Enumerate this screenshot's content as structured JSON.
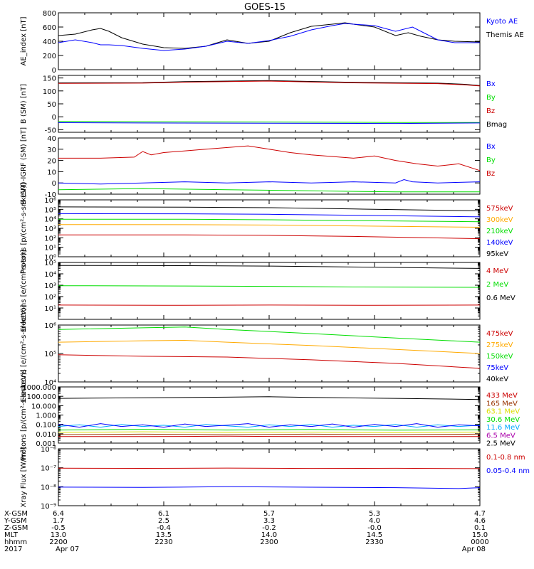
{
  "title": "GOES-15",
  "colors": {
    "black": "#000000",
    "blue": "#0000ff",
    "green": "#00dd00",
    "red": "#cc0000",
    "orange": "#ffaa00",
    "cyan": "#00aaff",
    "purple": "#aa00aa",
    "brown": "#993300",
    "yellow": "#dddd00"
  },
  "chart_data": [
    {
      "type": "line",
      "ylabel": "AE_index [nT]",
      "scale": "linear",
      "ylim": [
        0,
        800
      ],
      "yticks": [
        0,
        200,
        400,
        600,
        800
      ],
      "ytick_labels": [
        "0",
        "200",
        "400",
        "600",
        "800"
      ],
      "legend": [
        {
          "label": "Kyoto AE",
          "color": "blue"
        },
        {
          "label": "Themis AE",
          "color": "black"
        }
      ],
      "series": [
        {
          "name": "Themis AE",
          "color": "black",
          "x": [
            0,
            0.04,
            0.08,
            0.1,
            0.12,
            0.15,
            0.2,
            0.25,
            0.3,
            0.35,
            0.4,
            0.45,
            0.5,
            0.55,
            0.6,
            0.65,
            0.68,
            0.7,
            0.75,
            0.8,
            0.83,
            0.86,
            0.9,
            0.94,
            1
          ],
          "y": [
            480,
            500,
            560,
            580,
            540,
            450,
            360,
            310,
            300,
            330,
            420,
            370,
            400,
            520,
            610,
            640,
            660,
            640,
            600,
            480,
            520,
            470,
            420,
            400,
            390
          ]
        },
        {
          "name": "Kyoto AE",
          "color": "blue",
          "x": [
            0,
            0.04,
            0.08,
            0.1,
            0.12,
            0.15,
            0.2,
            0.25,
            0.3,
            0.35,
            0.4,
            0.45,
            0.5,
            0.55,
            0.6,
            0.65,
            0.68,
            0.7,
            0.75,
            0.8,
            0.84,
            0.87,
            0.9,
            0.94,
            1
          ],
          "y": [
            380,
            420,
            380,
            350,
            350,
            340,
            300,
            270,
            290,
            330,
            400,
            370,
            410,
            470,
            560,
            620,
            650,
            640,
            620,
            540,
            600,
            510,
            420,
            380,
            380
          ]
        }
      ]
    },
    {
      "type": "line",
      "ylabel": "B (SM) [nT]",
      "scale": "linear",
      "ylim": [
        -60,
        160
      ],
      "yticks": [
        -50,
        0,
        50,
        100,
        150
      ],
      "ytick_labels": [
        "-50",
        "0",
        "50",
        "100",
        "150"
      ],
      "legend": [
        {
          "label": "Bx",
          "color": "blue"
        },
        {
          "label": "By",
          "color": "green"
        },
        {
          "label": "Bz",
          "color": "red"
        },
        {
          "label": "Bmag",
          "color": "black"
        }
      ],
      "series": [
        {
          "name": "Bmag",
          "color": "black",
          "x": [
            0,
            0.2,
            0.3,
            0.5,
            0.7,
            0.9,
            0.96,
            1
          ],
          "y": [
            131,
            132,
            136,
            140,
            133,
            130,
            126,
            121
          ]
        },
        {
          "name": "Bz",
          "color": "red",
          "x": [
            0,
            0.2,
            0.3,
            0.5,
            0.7,
            0.9,
            0.96,
            1
          ],
          "y": [
            129,
            130,
            134,
            138,
            131,
            128,
            124,
            119
          ]
        },
        {
          "name": "By",
          "color": "green",
          "x": [
            0,
            0.2,
            0.5,
            0.8,
            1
          ],
          "y": [
            -18,
            -19,
            -20,
            -22,
            -22
          ]
        },
        {
          "name": "Bx",
          "color": "blue",
          "x": [
            0,
            0.2,
            0.5,
            0.8,
            1
          ],
          "y": [
            -23,
            -24,
            -25,
            -26,
            -24
          ]
        }
      ]
    },
    {
      "type": "line",
      "ylabel": "B (SM)-IGRF (SM) [nT]",
      "scale": "linear",
      "ylim": [
        -10,
        40
      ],
      "yticks": [
        -10,
        0,
        10,
        20,
        30,
        40
      ],
      "ytick_labels": [
        "-10",
        "0",
        "10",
        "20",
        "30",
        "40"
      ],
      "legend": [
        {
          "label": "Bx",
          "color": "blue"
        },
        {
          "label": "By",
          "color": "green"
        },
        {
          "label": "Bz",
          "color": "red"
        }
      ],
      "series": [
        {
          "name": "Bz",
          "color": "red",
          "x": [
            0,
            0.1,
            0.18,
            0.2,
            0.22,
            0.25,
            0.35,
            0.45,
            0.5,
            0.55,
            0.6,
            0.7,
            0.75,
            0.8,
            0.85,
            0.9,
            0.95,
            1
          ],
          "y": [
            22,
            22,
            23,
            28,
            25,
            27,
            30,
            33,
            30,
            27,
            25,
            22,
            24,
            20,
            17,
            15,
            17,
            11
          ]
        },
        {
          "name": "Bx",
          "color": "blue",
          "x": [
            0,
            0.1,
            0.2,
            0.3,
            0.4,
            0.5,
            0.6,
            0.7,
            0.8,
            0.82,
            0.84,
            0.9,
            1
          ],
          "y": [
            0,
            -1,
            0,
            1,
            0,
            1,
            0,
            1,
            0,
            3,
            1,
            0,
            1
          ]
        },
        {
          "name": "By",
          "color": "green",
          "x": [
            0,
            0.2,
            0.4,
            0.6,
            0.8,
            1
          ],
          "y": [
            -6,
            -5,
            -6,
            -7,
            -8,
            -8
          ]
        }
      ]
    },
    {
      "type": "line",
      "ylabel": "Protons [p/(cm²-s-sr-keV)]",
      "scale": "log",
      "ylim": [
        1,
        1000000
      ],
      "yticks": [
        1,
        10,
        100,
        1000,
        10000,
        100000,
        1000000
      ],
      "ytick_labels": [
        "10⁰",
        "10¹",
        "10²",
        "10³",
        "10⁴",
        "10⁵",
        "10⁶"
      ],
      "legend": [
        {
          "label": "575keV",
          "color": "red"
        },
        {
          "label": "300keV",
          "color": "orange"
        },
        {
          "label": "210keV",
          "color": "green"
        },
        {
          "label": "140keV",
          "color": "blue"
        },
        {
          "label": "95keV",
          "color": "black"
        }
      ],
      "series": [
        {
          "name": "95keV",
          "color": "black",
          "x": [
            0,
            0.3,
            0.5,
            0.7,
            1
          ],
          "y": [
            180000,
            170000,
            150000,
            110000,
            70000
          ]
        },
        {
          "name": "140keV",
          "color": "blue",
          "x": [
            0,
            0.3,
            0.5,
            0.7,
            1
          ],
          "y": [
            35000,
            34000,
            30000,
            24000,
            16000
          ]
        },
        {
          "name": "210keV",
          "color": "green",
          "x": [
            0,
            0.3,
            0.5,
            0.7,
            1
          ],
          "y": [
            9000,
            9000,
            8000,
            6500,
            5000
          ]
        },
        {
          "name": "300keV",
          "color": "orange",
          "x": [
            0,
            0.3,
            0.5,
            0.7,
            1
          ],
          "y": [
            2500,
            2400,
            2200,
            1800,
            1300
          ]
        },
        {
          "name": "575keV",
          "color": "red",
          "x": [
            0,
            0.3,
            0.5,
            0.7,
            1
          ],
          "y": [
            200,
            200,
            180,
            140,
            80
          ]
        }
      ]
    },
    {
      "type": "line",
      "ylabel": "Electrons [e/(cm²-s-sr)]",
      "scale": "log",
      "ylim": [
        1,
        100000
      ],
      "yticks": [
        1,
        10,
        100,
        1000,
        10000,
        100000
      ],
      "ytick_labels": [
        "",
        "10¹",
        "10²",
        "10³",
        "10⁴",
        "10⁵"
      ],
      "legend": [
        {
          "label": "4 MeV",
          "color": "red"
        },
        {
          "label": "2 MeV",
          "color": "green"
        },
        {
          "label": "0.6 MeV",
          "color": "black"
        }
      ],
      "series": [
        {
          "name": "0.6 MeV",
          "color": "black",
          "x": [
            0,
            0.3,
            0.5,
            0.7,
            1
          ],
          "y": [
            55000,
            52000,
            48000,
            40000,
            30000
          ]
        },
        {
          "name": "2 MeV",
          "color": "green",
          "x": [
            0,
            0.3,
            0.5,
            0.7,
            1
          ],
          "y": [
            900,
            850,
            800,
            700,
            650
          ]
        },
        {
          "name": "4 MeV",
          "color": "red",
          "x": [
            0,
            0.25,
            0.5,
            0.75,
            1
          ],
          "y": [
            18,
            17,
            18,
            17,
            18
          ]
        }
      ]
    },
    {
      "type": "line",
      "ylabel": "Electrons [e/(cm²-s-sr-keV)]",
      "scale": "log",
      "ylim": [
        10000,
        1000000
      ],
      "yticks": [
        10000,
        100000,
        1000000
      ],
      "ytick_labels": [
        "10⁴",
        "10⁵",
        "10⁶"
      ],
      "legend": [
        {
          "label": "475keV",
          "color": "red"
        },
        {
          "label": "275keV",
          "color": "orange"
        },
        {
          "label": "150keV",
          "color": "green"
        },
        {
          "label": "75keV",
          "color": "blue"
        },
        {
          "label": "40keV",
          "color": "black"
        }
      ],
      "series": [
        {
          "name": "150keV",
          "color": "green",
          "x": [
            0,
            0.2,
            0.3,
            0.4,
            0.6,
            0.8,
            1
          ],
          "y": [
            700000,
            800000,
            850000,
            700000,
            500000,
            350000,
            250000
          ]
        },
        {
          "name": "275keV",
          "color": "orange",
          "x": [
            0,
            0.2,
            0.3,
            0.4,
            0.6,
            0.8,
            1
          ],
          "y": [
            250000,
            280000,
            290000,
            250000,
            190000,
            140000,
            100000
          ]
        },
        {
          "name": "475keV",
          "color": "red",
          "x": [
            0,
            0.2,
            0.4,
            0.6,
            0.8,
            1
          ],
          "y": [
            90000,
            80000,
            75000,
            60000,
            45000,
            30000
          ]
        }
      ]
    },
    {
      "type": "line",
      "ylabel": "Protons [p/(cm²-s-sr-keV)]",
      "scale": "log",
      "ylim": [
        0.001,
        1000
      ],
      "yticks": [
        0.001,
        0.01,
        0.1,
        1,
        10,
        100,
        1000
      ],
      "ytick_labels": [
        "0.001",
        "0.010",
        "0.100",
        "1.000",
        "10.000",
        "100.000",
        "1000.000"
      ],
      "legend": [
        {
          "label": "433 MeV",
          "color": "red"
        },
        {
          "label": "165 MeV",
          "color": "brown"
        },
        {
          "label": "63.1 MeV",
          "color": "yellow"
        },
        {
          "label": "30.6 MeV",
          "color": "green"
        },
        {
          "label": "11.6 MeV",
          "color": "cyan"
        },
        {
          "label": "6.5 MeV",
          "color": "purple"
        },
        {
          "label": "2.5 MeV",
          "color": "black"
        }
      ],
      "series": [
        {
          "name": "2.5 MeV",
          "color": "black",
          "x": [
            0,
            0.2,
            0.4,
            0.5,
            0.6,
            0.8,
            1
          ],
          "y": [
            60,
            70,
            80,
            90,
            75,
            60,
            45
          ]
        },
        {
          "name": "11.6 MeV",
          "color": "cyan",
          "x": [
            0,
            0.05,
            0.1,
            0.15,
            0.2,
            0.25,
            0.3,
            0.35,
            0.4,
            0.45,
            0.5,
            0.55,
            0.6,
            0.65,
            0.7,
            0.75,
            0.8,
            0.85,
            0.9,
            0.95,
            1
          ],
          "y": [
            0.06,
            0.09,
            0.05,
            0.1,
            0.06,
            0.08,
            0.05,
            0.1,
            0.07,
            0.05,
            0.09,
            0.06,
            0.1,
            0.05,
            0.08,
            0.06,
            0.1,
            0.05,
            0.09,
            0.06,
            0.08
          ]
        },
        {
          "name": "6.5 MeV",
          "color": "blue",
          "x": [
            0,
            0.05,
            0.1,
            0.15,
            0.2,
            0.25,
            0.3,
            0.35,
            0.4,
            0.45,
            0.5,
            0.55,
            0.6,
            0.65,
            0.7,
            0.75,
            0.8,
            0.85,
            0.9,
            0.95,
            1
          ],
          "y": [
            0.1,
            0.05,
            0.12,
            0.06,
            0.09,
            0.05,
            0.11,
            0.06,
            0.08,
            0.12,
            0.05,
            0.09,
            0.06,
            0.11,
            0.05,
            0.1,
            0.06,
            0.12,
            0.05,
            0.09,
            0.07
          ]
        },
        {
          "name": "30.6 MeV",
          "color": "green",
          "x": [
            0,
            0.2,
            0.4,
            0.6,
            0.8,
            1
          ],
          "y": [
            0.025,
            0.03,
            0.025,
            0.028,
            0.024,
            0.026
          ]
        },
        {
          "name": "63.1 MeV",
          "color": "yellow",
          "x": [
            0,
            0.2,
            0.4,
            0.6,
            0.8,
            1
          ],
          "y": [
            0.014,
            0.016,
            0.014,
            0.015,
            0.013,
            0.015
          ]
        },
        {
          "name": "165 MeV",
          "color": "brown",
          "x": [
            0,
            0.2,
            0.4,
            0.6,
            0.8,
            1
          ],
          "y": [
            0.008,
            0.009,
            0.008,
            0.009,
            0.008,
            0.009
          ]
        },
        {
          "name": "433 MeV",
          "color": "red",
          "x": [
            0,
            0.2,
            0.4,
            0.6,
            0.8,
            1
          ],
          "y": [
            0.005,
            0.005,
            0.0055,
            0.005,
            0.005,
            0.005
          ]
        }
      ]
    },
    {
      "type": "line",
      "ylabel": "Xray Flux [W/m²]",
      "scale": "log",
      "ylim": [
        1e-09,
        1e-06
      ],
      "yticks": [
        1e-09,
        1e-08,
        1e-07,
        1e-06
      ],
      "ytick_labels": [
        "10⁻⁹",
        "10⁻⁸",
        "10⁻⁷",
        "10⁻⁶"
      ],
      "legend": [
        {
          "label": "0.1-0.8 nm",
          "color": "red"
        },
        {
          "label": "0.05-0.4 nm",
          "color": "blue"
        }
      ],
      "series": [
        {
          "name": "0.1-0.8 nm",
          "color": "red",
          "x": [
            0,
            0.2,
            0.4,
            0.6,
            0.8,
            1
          ],
          "y": [
            9.5e-08,
            9.3e-08,
            9.6e-08,
            9.2e-08,
            9.4e-08,
            9e-08
          ]
        },
        {
          "name": "0.05-0.4 nm",
          "color": "blue",
          "x": [
            0,
            0.2,
            0.4,
            0.6,
            0.8,
            0.95,
            1
          ],
          "y": [
            9.5e-09,
            9.2e-09,
            1e-08,
            9.4e-09,
            9e-09,
            8e-09,
            9e-09
          ]
        }
      ]
    }
  ],
  "x_axis": {
    "row_labels": [
      "X-GSM",
      "Y-GSM",
      "Z-GSM",
      "MLT",
      "hhmm",
      "2017"
    ],
    "columns": [
      {
        "values": [
          "6.4",
          "1.7",
          "-0.5",
          "13.0",
          "2200",
          "Apr 07"
        ]
      },
      {
        "values": [
          "6.1",
          "2.5",
          "-0.4",
          "13.5",
          "2230",
          ""
        ]
      },
      {
        "values": [
          "5.7",
          "3.3",
          "-0.2",
          "14.0",
          "2300",
          ""
        ]
      },
      {
        "values": [
          "5.3",
          "4.0",
          "-0.0",
          "14.5",
          "2330",
          ""
        ]
      },
      {
        "values": [
          "4.7",
          "4.6",
          "0.1",
          "15.0",
          "0000",
          "Apr 08"
        ]
      }
    ]
  }
}
